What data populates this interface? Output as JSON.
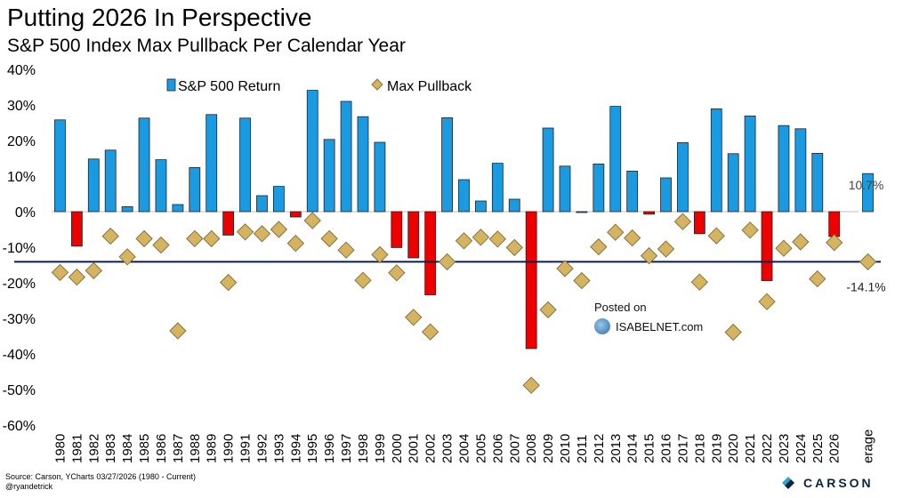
{
  "title": "Putting 2026 In Perspective",
  "subtitle": "S&P 500 Index Max Pullback Per Calendar Year",
  "source": "Source: Carson, YCharts 03/27/2026 (1980 - Current)",
  "handle": "@ryandetrick",
  "watermark": {
    "line1": "Posted on",
    "line2": "ISABELNET.com"
  },
  "logo": "CARSON",
  "colors": {
    "positive": "#1a9ae0",
    "negative": "#ee0000",
    "pullback": "#d4b460",
    "pullback_edge": "#8a7340",
    "average_line": "#0b1f4a"
  },
  "chart_data": {
    "type": "bar",
    "title": "Putting 2026 In Perspective",
    "subtitle": "S&P 500 Index Max Pullback Per Calendar Year",
    "categories": [
      "1980",
      "1981",
      "1982",
      "1983",
      "1984",
      "1985",
      "1986",
      "1987",
      "1988",
      "1989",
      "1990",
      "1991",
      "1992",
      "1993",
      "1994",
      "1995",
      "1996",
      "1997",
      "1998",
      "1999",
      "2000",
      "2001",
      "2002",
      "2003",
      "2004",
      "2005",
      "2006",
      "2007",
      "2008",
      "2009",
      "2010",
      "2011",
      "2012",
      "2013",
      "2014",
      "2015",
      "2016",
      "2017",
      "2018",
      "2019",
      "2020",
      "2021",
      "2022",
      "2023",
      "2024",
      "2025",
      "2026",
      "",
      "erage"
    ],
    "series": [
      {
        "name": "S&P 500 Return",
        "kind": "bar",
        "values": [
          25.8,
          -9.7,
          14.8,
          17.3,
          1.4,
          26.3,
          14.6,
          2.0,
          12.4,
          27.3,
          -6.6,
          26.3,
          4.5,
          7.1,
          -1.5,
          34.1,
          20.3,
          31.0,
          26.7,
          19.5,
          -10.1,
          -13.0,
          -23.4,
          26.4,
          9.0,
          3.0,
          13.6,
          3.5,
          -38.5,
          23.5,
          12.8,
          0.0,
          13.4,
          29.6,
          11.4,
          -0.7,
          9.5,
          19.4,
          -6.2,
          28.9,
          16.3,
          26.9,
          -19.4,
          24.2,
          23.3,
          16.4,
          -7.0,
          null,
          10.7
        ]
      },
      {
        "name": "Max Pullback",
        "kind": "scatter",
        "values": [
          -17.1,
          -18.4,
          -16.6,
          -6.9,
          -12.7,
          -7.6,
          -9.4,
          -33.5,
          -7.6,
          -7.6,
          -19.9,
          -5.7,
          -6.2,
          -5.0,
          -8.9,
          -2.5,
          -7.6,
          -10.8,
          -19.3,
          -12.1,
          -17.2,
          -29.7,
          -33.8,
          -14.1,
          -8.2,
          -7.2,
          -7.7,
          -10.1,
          -48.8,
          -27.6,
          -16.0,
          -19.4,
          -9.9,
          -5.8,
          -7.4,
          -12.4,
          -10.5,
          -2.8,
          -19.8,
          -6.8,
          -33.9,
          -5.2,
          -25.3,
          -10.3,
          -8.5,
          -18.9,
          -8.7,
          null,
          -14.1
        ]
      }
    ],
    "average_return_label": "10.7%",
    "average_pullback_label": "-14.1%",
    "average_pullback": -14.1,
    "y_ticks": [
      "40%",
      "30%",
      "20%",
      "10%",
      "0%",
      "-10%",
      "-20%",
      "-30%",
      "-40%",
      "-50%",
      "-60%"
    ],
    "ylim": [
      -60,
      40
    ],
    "grid": false,
    "legend_position": "top"
  }
}
